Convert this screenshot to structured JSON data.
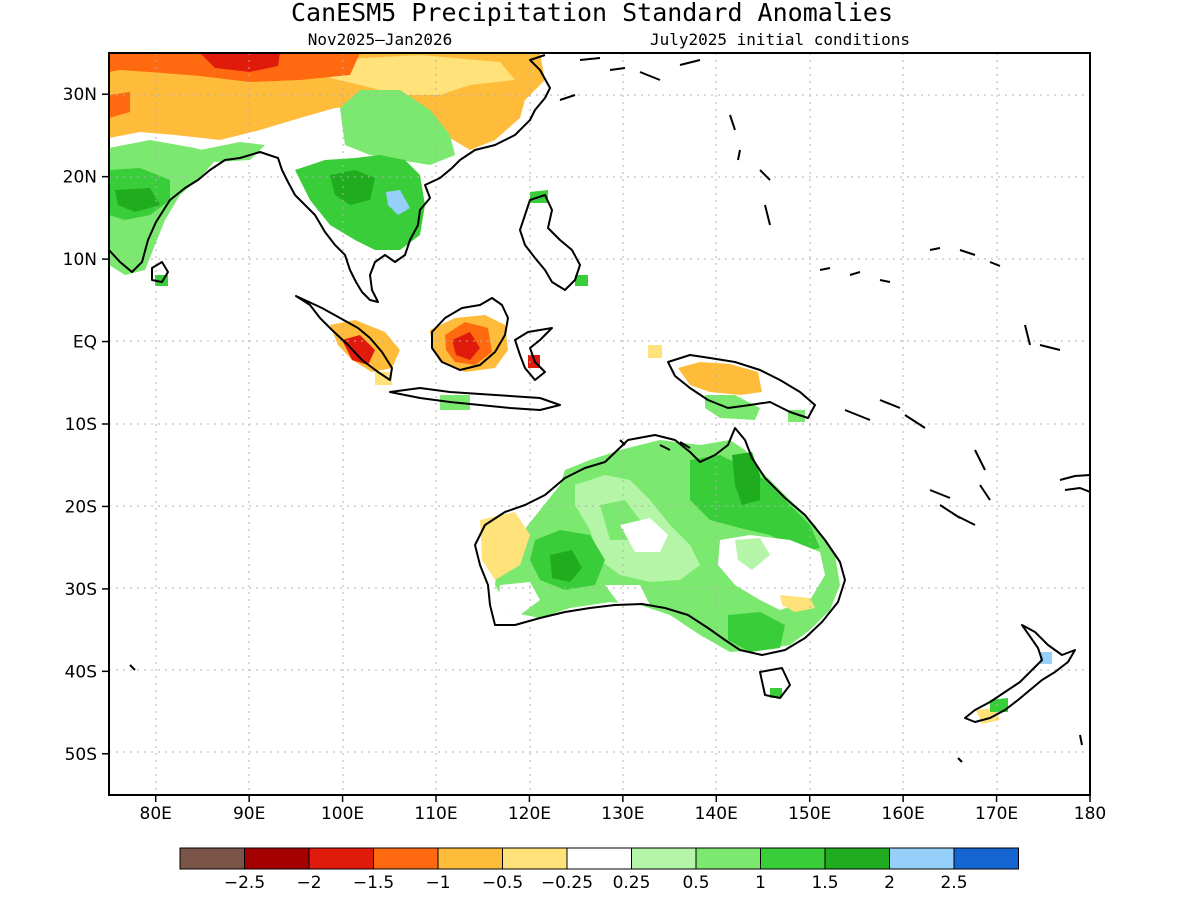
{
  "title": "CanESM5 Precipitation Standard Anomalies",
  "subtitle_left": "Nov2025–Jan2026",
  "subtitle_right": "July2025 initial conditions",
  "map": {
    "lon_range": [
      75,
      180
    ],
    "lat_range": [
      -55,
      35
    ],
    "grid": "dotted",
    "x_ticks": [
      {
        "lon": 80,
        "label": "80E"
      },
      {
        "lon": 90,
        "label": "90E"
      },
      {
        "lon": 100,
        "label": "100E"
      },
      {
        "lon": 110,
        "label": "110E"
      },
      {
        "lon": 120,
        "label": "120E"
      },
      {
        "lon": 130,
        "label": "130E"
      },
      {
        "lon": 140,
        "label": "140E"
      },
      {
        "lon": 150,
        "label": "150E"
      },
      {
        "lon": 160,
        "label": "160E"
      },
      {
        "lon": 170,
        "label": "170E"
      },
      {
        "lon": 180,
        "label": "180"
      }
    ],
    "y_ticks": [
      {
        "lat": 30,
        "label": "30N"
      },
      {
        "lat": 20,
        "label": "20N"
      },
      {
        "lat": 10,
        "label": "10N"
      },
      {
        "lat": 0,
        "label": "EQ"
      },
      {
        "lat": -10,
        "label": "10S"
      },
      {
        "lat": -20,
        "label": "20S"
      },
      {
        "lat": -30,
        "label": "30S"
      },
      {
        "lat": -40,
        "label": "40S"
      },
      {
        "lat": -50,
        "label": "50S"
      }
    ]
  },
  "colorbar": {
    "colors": [
      "#7a5547",
      "#a50000",
      "#e01b0c",
      "#ff6a10",
      "#ffbb3a",
      "#ffe27a",
      "#ffffff",
      "#b5f5a8",
      "#7be870",
      "#3acd3a",
      "#1fad1f",
      "#96d0fa",
      "#1464d2"
    ],
    "labels": [
      "−2.5",
      "−2",
      "−1.5",
      "−1",
      "−0.5",
      "−0.25",
      "0.25",
      "0.5",
      "1",
      "1.5",
      "2",
      "2.5"
    ]
  }
}
